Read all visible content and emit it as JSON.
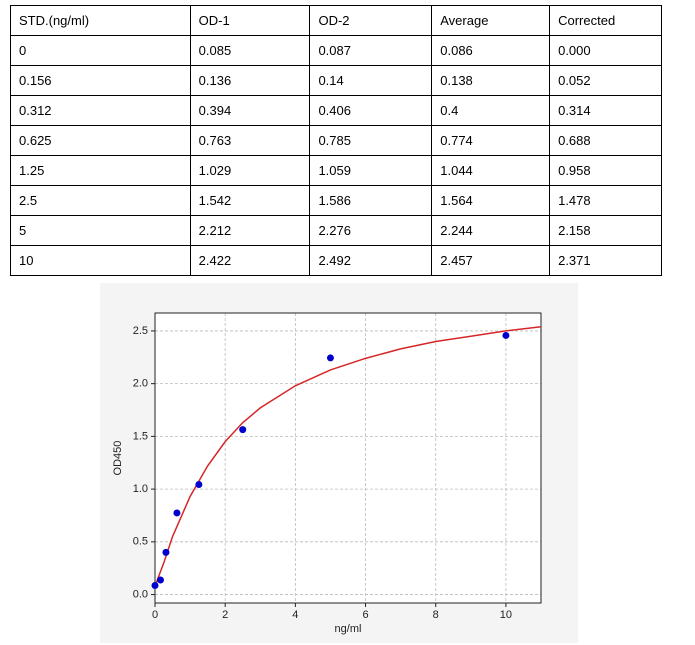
{
  "table": {
    "header": [
      "STD.(ng/ml)",
      "OD-1",
      "OD-2",
      "Average",
      "Corrected"
    ],
    "rows": [
      [
        "0",
        "0.085",
        "0.087",
        "0.086",
        "0.000"
      ],
      [
        "0.156",
        "0.136",
        "0.14",
        "0.138",
        "0.052"
      ],
      [
        "0.312",
        "0.394",
        "0.406",
        "0.4",
        "0.314"
      ],
      [
        "0.625",
        "0.763",
        "0.785",
        "0.774",
        "0.688"
      ],
      [
        "1.25",
        "1.029",
        "1.059",
        "1.044",
        "0.958"
      ],
      [
        "2.5",
        "1.542",
        "1.586",
        "1.564",
        "1.478"
      ],
      [
        "5",
        "2.212",
        "2.276",
        "2.244",
        "2.158"
      ],
      [
        "10",
        "2.422",
        "2.492",
        "2.457",
        "2.371"
      ]
    ]
  },
  "chart_data": {
    "type": "scatter",
    "x_label": "ng/ml",
    "y_label": "OD450",
    "xlim": [
      0,
      11
    ],
    "ylim": [
      -0.08,
      2.67
    ],
    "xticks": [
      0,
      2,
      4,
      6,
      8,
      10
    ],
    "yticks": [
      {
        "value": 0,
        "label": "0.0"
      },
      0.5,
      {
        "value": 1,
        "label": "1.0"
      },
      1.5,
      {
        "value": 2,
        "label": "2.0"
      },
      2.5
    ],
    "grid": true,
    "series": [
      {
        "type": "scatter",
        "color": "#0000cc",
        "x": [
          0,
          0.156,
          0.312,
          0.625,
          1.25,
          2.5,
          5,
          10
        ],
        "values": [
          0.086,
          0.138,
          0.4,
          0.774,
          1.044,
          1.564,
          2.244,
          2.457
        ]
      },
      {
        "type": "line",
        "color": "#d62728",
        "x": [
          0,
          0.25,
          0.5,
          1,
          1.5,
          2,
          2.5,
          3,
          4,
          5,
          6,
          7,
          8,
          9,
          10,
          11
        ],
        "values": [
          0.08,
          0.3,
          0.55,
          0.93,
          1.22,
          1.45,
          1.63,
          1.77,
          1.98,
          2.13,
          2.24,
          2.33,
          2.4,
          2.45,
          2.5,
          2.54
        ]
      }
    ]
  }
}
